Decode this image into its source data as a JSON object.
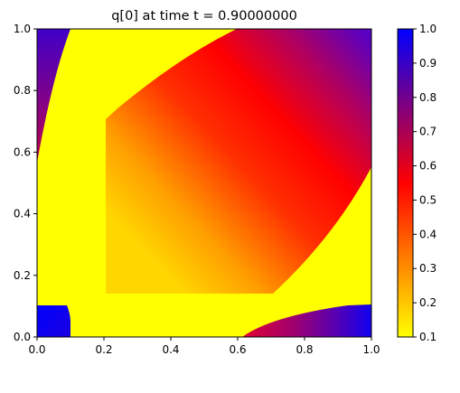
{
  "chart_data": {
    "type": "heatmap",
    "title": "q[0] at time t =     0.90000000",
    "xlabel": "",
    "ylabel": "",
    "xlim": [
      0.0,
      1.0
    ],
    "ylim": [
      0.0,
      1.0
    ],
    "x_ticks": [
      "0.0",
      "0.2",
      "0.4",
      "0.6",
      "0.8",
      "1.0"
    ],
    "y_ticks": [
      "0.0",
      "0.2",
      "0.4",
      "0.6",
      "0.8",
      "1.0"
    ],
    "grid": false,
    "colorbar": {
      "range": [
        0.1,
        1.0
      ],
      "ticks": [
        "0.1",
        "0.2",
        "0.3",
        "0.4",
        "0.5",
        "0.6",
        "0.7",
        "0.8",
        "0.9",
        "1.0"
      ],
      "colormap": [
        "#ffff00",
        "#ff0000",
        "#0000ff"
      ]
    },
    "regions": [
      {
        "name": "background",
        "value": 0.1
      },
      {
        "name": "central-wedge",
        "x_range": [
          0.2,
          1.0
        ],
        "y_range": [
          0.2,
          1.0
        ],
        "value_range": [
          0.1,
          0.85
        ]
      },
      {
        "name": "top-left-corner",
        "value": 0.85
      },
      {
        "name": "bottom-left-corner",
        "value": 1.0
      },
      {
        "name": "bottom-right-corner",
        "value_range": [
          0.6,
          1.0
        ]
      }
    ]
  }
}
